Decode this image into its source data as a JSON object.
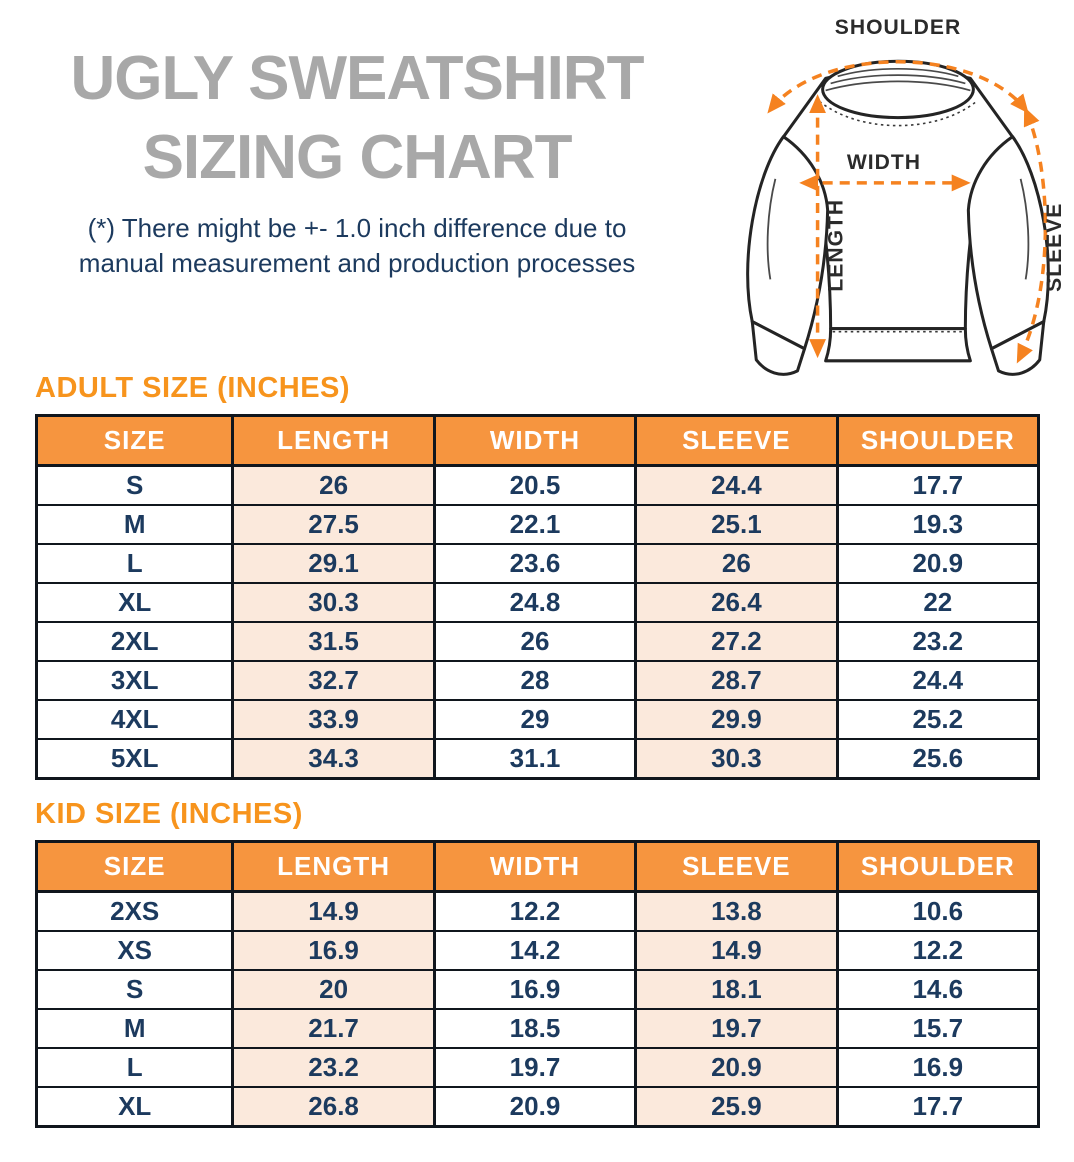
{
  "header": {
    "title_line1": "UGLY SWEATSHIRT",
    "title_line2": "SIZING CHART",
    "disclaimer_line1": "(*) There might be +- 1.0 inch difference due to",
    "disclaimer_line2": "manual measurement and production processes"
  },
  "diagram": {
    "shoulder_label": "SHOULDER",
    "width_label": "WIDTH",
    "length_label": "LENGTH",
    "sleeve_label": "SLEEVE"
  },
  "adult_table": {
    "heading": "ADULT SIZE (INCHES)",
    "columns": [
      "SIZE",
      "LENGTH",
      "WIDTH",
      "SLEEVE",
      "SHOULDER"
    ],
    "rows": [
      [
        "S",
        "26",
        "20.5",
        "24.4",
        "17.7"
      ],
      [
        "M",
        "27.5",
        "22.1",
        "25.1",
        "19.3"
      ],
      [
        "L",
        "29.1",
        "23.6",
        "26",
        "20.9"
      ],
      [
        "XL",
        "30.3",
        "24.8",
        "26.4",
        "22"
      ],
      [
        "2XL",
        "31.5",
        "26",
        "27.2",
        "23.2"
      ],
      [
        "3XL",
        "32.7",
        "28",
        "28.7",
        "24.4"
      ],
      [
        "4XL",
        "33.9",
        "29",
        "29.9",
        "25.2"
      ],
      [
        "5XL",
        "34.3",
        "31.1",
        "30.3",
        "25.6"
      ]
    ]
  },
  "kid_table": {
    "heading": "KID SIZE (INCHES)",
    "columns": [
      "SIZE",
      "LENGTH",
      "WIDTH",
      "SLEEVE",
      "SHOULDER"
    ],
    "rows": [
      [
        "2XS",
        "14.9",
        "12.2",
        "13.8",
        "10.6"
      ],
      [
        "XS",
        "16.9",
        "14.2",
        "14.9",
        "12.2"
      ],
      [
        "S",
        "20",
        "16.9",
        "18.1",
        "14.6"
      ],
      [
        "M",
        "21.7",
        "18.5",
        "19.7",
        "15.7"
      ],
      [
        "L",
        "23.2",
        "19.7",
        "20.9",
        "16.9"
      ],
      [
        "XL",
        "26.8",
        "20.9",
        "25.9",
        "17.7"
      ]
    ]
  },
  "colors": {
    "orange_header": "#F6953F",
    "orange_heading": "#F7941D",
    "peach_cell": "#FBE9DC",
    "navy_text": "#1C3A5E",
    "gray_title": "#A8A8A8",
    "table_border": "#10161D",
    "arrow_orange": "#F58220"
  }
}
